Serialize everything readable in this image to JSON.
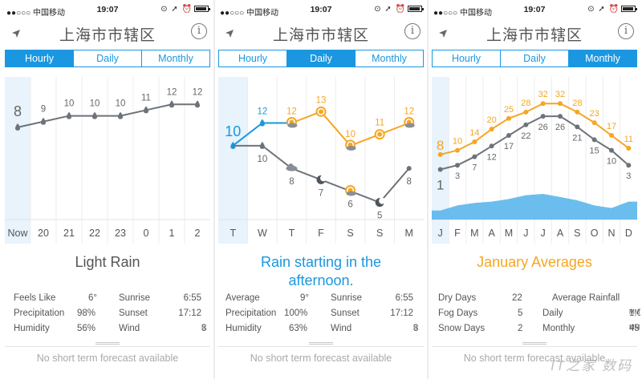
{
  "status_bar": {
    "carrier": "●●○○○ 中国移动",
    "time": "19:07",
    "right": "⊙ ➚ ⏰"
  },
  "city": "上海市市辖区",
  "info_label": "i",
  "tabs": [
    "Hourly",
    "Daily",
    "Monthly"
  ],
  "colors": {
    "accent": "#1a97e0",
    "warm": "#f5a623",
    "gray_line": "#6d737a",
    "today_shade": "#e8f3fc",
    "rain_area": "#5bb6ec"
  },
  "footer_text": "No short term forecast available",
  "panels": [
    {
      "active_tab": "Hourly",
      "chart_data": {
        "type": "line",
        "x_labels": [
          "Now",
          "20",
          "21",
          "22",
          "23",
          "0",
          "1",
          "2"
        ],
        "series": [
          {
            "values": [
              8,
              9,
              10,
              10,
              10,
              11,
              12,
              12
            ],
            "icons": [
              "rain",
              "rain",
              "rain",
              "rain",
              "rain",
              "rain",
              "rain",
              "rain"
            ],
            "label_pos": "above"
          }
        ],
        "ylim": [
          0,
          14
        ]
      },
      "summary": "Light Rain",
      "stats": {
        "left": [
          {
            "label": "Feels Like",
            "value": "6°"
          },
          {
            "label": "Precipitation",
            "value": "98%"
          },
          {
            "label": "Humidity",
            "value": "56%"
          }
        ],
        "right": [
          {
            "label": "Sunrise",
            "value": "6:55",
            "unit": ""
          },
          {
            "label": "Sunset",
            "value": "17:12",
            "unit": ""
          },
          {
            "label": "Wind",
            "value": "3",
            "unit": "E"
          }
        ]
      }
    },
    {
      "active_tab": "Daily",
      "chart_data": {
        "type": "line",
        "x_labels": [
          "T",
          "W",
          "T",
          "F",
          "S",
          "S",
          "M"
        ],
        "series": [
          {
            "name_role": "high",
            "values": [
              10,
              12,
              12,
              13,
              10,
              11,
              12
            ],
            "icons": [
              "rain",
              "rain",
              "partly",
              "sun",
              "partly",
              "sun",
              "partly"
            ],
            "label_pos": "above"
          },
          {
            "name_role": "low",
            "values": [
              10,
              8,
              7,
              6,
              5,
              8
            ],
            "x_index": [
              1,
              2,
              3,
              4,
              5,
              6
            ],
            "icons": [
              "rain",
              "cloud",
              "moon",
              "partly",
              "moon",
              ""
            ],
            "label_pos": "below"
          }
        ],
        "ylim": [
          3,
          15
        ]
      },
      "summary": "Rain starting in the afternoon.",
      "stats": {
        "left": [
          {
            "label": "Average",
            "value": "9°"
          },
          {
            "label": "Precipitation",
            "value": "100%"
          },
          {
            "label": "Humidity",
            "value": "63%"
          }
        ],
        "right": [
          {
            "label": "Sunrise",
            "value": "6:55",
            "unit": ""
          },
          {
            "label": "Sunset",
            "value": "17:12",
            "unit": ""
          },
          {
            "label": "Wind",
            "value": "3",
            "unit": "E"
          }
        ]
      }
    },
    {
      "active_tab": "Monthly",
      "chart_data": {
        "type": "line",
        "x_labels": [
          "J",
          "F",
          "M",
          "A",
          "M",
          "J",
          "J",
          "A",
          "S",
          "O",
          "N",
          "D"
        ],
        "series": [
          {
            "name_role": "high",
            "values": [
              8,
              10,
              14,
              20,
              25,
              28,
              32,
              32,
              28,
              23,
              17,
              11
            ],
            "label_pos": "above"
          },
          {
            "name_role": "low",
            "values": [
              1,
              3,
              7,
              12,
              17,
              22,
              26,
              26,
              21,
              15,
              10,
              3
            ],
            "label_pos": "below"
          }
        ],
        "rainfall": [
          0.35,
          0.55,
          0.65,
          0.7,
          0.8,
          0.95,
          1.0,
          0.88,
          0.75,
          0.55,
          0.45,
          0.7
        ],
        "ylim": [
          -12,
          40
        ]
      },
      "summary": "January Averages",
      "stats": {
        "left": [
          {
            "label": "Dry Days",
            "value": "22"
          },
          {
            "label": "Fog Days",
            "value": "5"
          },
          {
            "label": "Snow Days",
            "value": "2"
          }
        ],
        "right_header": "Average Rainfall",
        "right": [
          {
            "label": "Daily",
            "value": "1.00",
            "unit": "MM"
          },
          {
            "label": "Monthly",
            "value": "45.00",
            "unit": "MM"
          }
        ]
      }
    }
  ],
  "watermark": "IT之家 数码"
}
